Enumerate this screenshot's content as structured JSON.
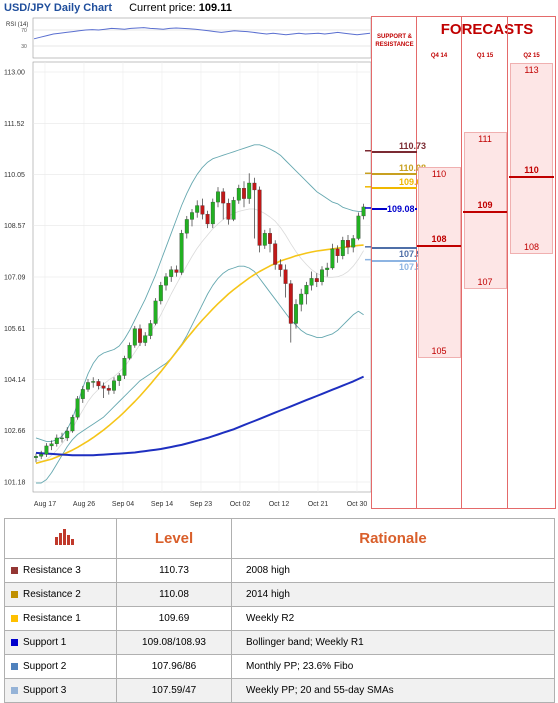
{
  "header": {
    "title": "USD/JPY Daily Chart",
    "price_label": "Current price:",
    "price_value": "109.11"
  },
  "rsi_label": "RSI (14)",
  "chart_data": {
    "type": "candlestick",
    "title": "USD/JPY Daily Chart",
    "current_price": 109.11,
    "y_ticks": [
      "113.00",
      "111.52",
      "110.05",
      "108.57",
      "107.09",
      "105.61",
      "104.14",
      "102.66",
      "101.18"
    ],
    "ylim": [
      101.18,
      113.0
    ],
    "x_ticks": [
      "Aug 17",
      "Aug 26",
      "Sep 04",
      "Sep 14",
      "Sep 23",
      "Oct 02",
      "Oct 12",
      "Oct 21",
      "Oct 30"
    ],
    "rsi_ticks": [
      "70",
      "30"
    ],
    "rsi": [
      48,
      52,
      56,
      60,
      62,
      64,
      66,
      68,
      70,
      71,
      70,
      72,
      74,
      73,
      72,
      74,
      75,
      76,
      74,
      73,
      72,
      74,
      75,
      74,
      73,
      72,
      70,
      68,
      66,
      64,
      66,
      68,
      67,
      66,
      64,
      62,
      60,
      62,
      60,
      58,
      60,
      62,
      60,
      61,
      62,
      60,
      62,
      64,
      62,
      60,
      58,
      60,
      62
    ],
    "candles": [
      [
        101.88,
        101.92,
        101.75,
        102.0
      ],
      [
        101.92,
        101.98,
        101.84,
        102.08
      ],
      [
        101.98,
        102.22,
        101.9,
        102.3
      ],
      [
        102.22,
        102.28,
        102.1,
        102.38
      ],
      [
        102.28,
        102.45,
        102.2,
        102.55
      ],
      [
        102.45,
        102.45,
        102.32,
        102.6
      ],
      [
        102.45,
        102.65,
        102.36,
        102.76
      ],
      [
        102.65,
        103.05,
        102.6,
        103.12
      ],
      [
        103.05,
        103.58,
        102.98,
        103.66
      ],
      [
        103.58,
        103.85,
        103.46,
        103.95
      ],
      [
        103.85,
        104.05,
        103.78,
        104.15
      ],
      [
        104.05,
        104.08,
        103.9,
        104.2
      ],
      [
        104.08,
        103.95,
        103.85,
        104.15
      ],
      [
        103.95,
        103.88,
        103.6,
        104.05
      ],
      [
        103.88,
        103.82,
        103.7,
        103.98
      ],
      [
        103.82,
        104.1,
        103.72,
        104.2
      ],
      [
        104.1,
        104.25,
        103.95,
        104.32
      ],
      [
        104.25,
        104.75,
        104.15,
        104.82
      ],
      [
        104.75,
        105.12,
        104.7,
        105.2
      ],
      [
        105.12,
        105.6,
        105.05,
        105.68
      ],
      [
        105.6,
        105.2,
        105.1,
        105.72
      ],
      [
        105.2,
        105.4,
        105.1,
        105.5
      ],
      [
        105.4,
        105.75,
        105.3,
        105.85
      ],
      [
        105.75,
        106.4,
        105.7,
        106.48
      ],
      [
        106.4,
        106.85,
        106.3,
        106.95
      ],
      [
        106.85,
        107.1,
        106.7,
        107.2
      ],
      [
        107.1,
        107.3,
        106.95,
        107.4
      ],
      [
        107.3,
        107.22,
        107.1,
        107.42
      ],
      [
        107.22,
        108.35,
        107.15,
        108.45
      ],
      [
        108.35,
        108.75,
        108.2,
        108.85
      ],
      [
        108.75,
        108.95,
        108.55,
        109.05
      ],
      [
        108.95,
        109.15,
        108.8,
        109.3
      ],
      [
        109.15,
        108.9,
        108.75,
        109.35
      ],
      [
        108.9,
        108.62,
        108.5,
        109.0
      ],
      [
        108.62,
        109.25,
        108.5,
        109.35
      ],
      [
        109.25,
        109.55,
        109.1,
        109.68
      ],
      [
        109.55,
        109.22,
        108.75,
        109.65
      ],
      [
        109.22,
        108.75,
        108.6,
        109.35
      ],
      [
        108.75,
        109.3,
        108.7,
        109.4
      ],
      [
        109.3,
        109.65,
        109.2,
        109.75
      ],
      [
        109.65,
        109.35,
        109.1,
        109.85
      ],
      [
        109.35,
        109.8,
        109.2,
        110.08
      ],
      [
        109.8,
        109.6,
        108.2,
        109.95
      ],
      [
        109.6,
        108.0,
        107.8,
        109.7
      ],
      [
        108.0,
        108.35,
        107.9,
        108.45
      ],
      [
        108.35,
        108.05,
        107.8,
        108.5
      ],
      [
        108.05,
        107.45,
        107.3,
        108.15
      ],
      [
        107.45,
        107.3,
        107.1,
        107.6
      ],
      [
        107.3,
        106.9,
        106.5,
        107.45
      ],
      [
        106.9,
        105.75,
        105.2,
        107.0
      ],
      [
        105.75,
        106.3,
        105.6,
        106.45
      ],
      [
        106.3,
        106.6,
        106.1,
        106.75
      ],
      [
        106.6,
        106.85,
        106.3,
        106.95
      ],
      [
        106.85,
        107.05,
        106.7,
        107.25
      ],
      [
        107.05,
        106.95,
        106.8,
        107.2
      ],
      [
        106.95,
        107.3,
        106.85,
        107.4
      ],
      [
        107.3,
        107.35,
        107.1,
        107.5
      ],
      [
        107.35,
        107.9,
        107.3,
        108.05
      ],
      [
        107.9,
        107.7,
        107.5,
        108.0
      ],
      [
        107.7,
        108.15,
        107.6,
        108.25
      ],
      [
        108.15,
        107.95,
        107.75,
        108.3
      ],
      [
        107.95,
        108.2,
        107.8,
        108.3
      ],
      [
        108.2,
        108.85,
        108.15,
        108.95
      ],
      [
        108.85,
        109.11,
        108.75,
        109.2
      ]
    ],
    "sma_fast": [
      101.82,
      101.78,
      101.82,
      101.95,
      102.1,
      102.28,
      102.48,
      102.72,
      103.0,
      103.25,
      103.5,
      103.7,
      103.85,
      104.0,
      104.12,
      104.22,
      104.35,
      104.5,
      104.7,
      104.92,
      105.15,
      105.32,
      105.5,
      105.72,
      106.0,
      106.3,
      106.6,
      106.88,
      107.15,
      107.42,
      107.68,
      107.92,
      108.12,
      108.3,
      108.48,
      108.62,
      108.75,
      108.85,
      108.92,
      108.98,
      109.02,
      109.05,
      109.05,
      109.0,
      108.92,
      108.82,
      108.7,
      108.52,
      108.3,
      108.05,
      107.82,
      107.62,
      107.45,
      107.3,
      107.2,
      107.12,
      107.08,
      107.08,
      107.1,
      107.15,
      107.25,
      107.4,
      107.6,
      107.85
    ],
    "sma_mid": [
      101.72,
      101.76,
      101.8,
      101.84,
      101.9,
      101.96,
      102.03,
      102.1,
      102.18,
      102.27,
      102.36,
      102.46,
      102.57,
      102.68,
      102.8,
      102.93,
      103.06,
      103.2,
      103.35,
      103.5,
      103.66,
      103.83,
      104.0,
      104.18,
      104.36,
      104.55,
      104.74,
      104.93,
      105.12,
      105.32,
      105.5,
      105.68,
      105.85,
      106.01,
      106.17,
      106.32,
      106.46,
      106.6,
      106.72,
      106.84,
      106.95,
      107.06,
      107.16,
      107.25,
      107.33,
      107.41,
      107.48,
      107.55,
      107.6,
      107.65,
      107.7,
      107.74,
      107.78,
      107.81,
      107.84,
      107.86,
      107.88,
      107.9,
      107.92,
      107.94,
      107.96,
      107.98,
      108.0,
      108.01
    ],
    "sma_slow": [
      102.02,
      102.01,
      102.0,
      101.99,
      101.98,
      101.97,
      101.96,
      101.95,
      101.95,
      101.95,
      101.95,
      101.95,
      101.96,
      101.97,
      101.98,
      101.99,
      102.0,
      102.01,
      102.02,
      102.03,
      102.05,
      102.07,
      102.09,
      102.11,
      102.13,
      102.16,
      102.19,
      102.22,
      102.25,
      102.29,
      102.33,
      102.37,
      102.41,
      102.45,
      102.5,
      102.55,
      102.6,
      102.65,
      102.7,
      102.76,
      102.82,
      102.88,
      102.94,
      103.0,
      103.06,
      103.12,
      103.18,
      103.24,
      103.3,
      103.36,
      103.42,
      103.48,
      103.54,
      103.6,
      103.66,
      103.72,
      103.78,
      103.84,
      103.9,
      103.96,
      104.02,
      104.08,
      104.15,
      104.22
    ],
    "bb_upper": [
      102.45,
      102.4,
      102.35,
      102.35,
      102.4,
      102.5,
      102.7,
      103.0,
      103.45,
      103.9,
      104.3,
      104.6,
      104.8,
      104.9,
      104.95,
      105.0,
      105.1,
      105.3,
      105.55,
      105.85,
      106.15,
      106.45,
      106.8,
      107.15,
      107.55,
      107.95,
      108.35,
      108.75,
      109.15,
      109.5,
      109.8,
      110.05,
      110.25,
      110.4,
      110.5,
      110.55,
      110.6,
      110.65,
      110.7,
      110.75,
      110.8,
      110.85,
      110.9,
      110.9,
      110.85,
      110.78,
      110.7,
      110.6,
      110.45,
      110.3,
      110.15,
      110.0,
      109.85,
      109.7,
      109.55,
      109.45,
      109.35,
      109.25,
      109.2,
      109.1,
      109.05,
      109.0,
      108.98,
      108.98
    ],
    "bb_lower": [
      101.15,
      101.15,
      101.25,
      101.45,
      101.7,
      101.95,
      102.2,
      102.4,
      102.55,
      102.65,
      102.75,
      102.85,
      102.95,
      103.05,
      103.2,
      103.35,
      103.5,
      103.65,
      103.8,
      103.95,
      104.1,
      104.2,
      104.3,
      104.4,
      104.5,
      104.6,
      104.75,
      104.95,
      105.15,
      105.4,
      105.7,
      106.0,
      106.3,
      106.6,
      106.85,
      107.05,
      107.2,
      107.3,
      107.35,
      107.4,
      107.4,
      107.35,
      107.25,
      107.05,
      106.85,
      106.65,
      106.45,
      106.25,
      106.05,
      105.85,
      105.7,
      105.55,
      105.45,
      105.4,
      105.35,
      105.35,
      105.4,
      105.45,
      105.55,
      105.7,
      105.85,
      106.0,
      106.1,
      106.0
    ],
    "support_resistance": [
      {
        "label": "110.73",
        "value": 110.73,
        "color": "#7b2a32"
      },
      {
        "label": "110.08",
        "value": 110.08,
        "color": "#c8a020"
      },
      {
        "label": "109.69",
        "value": 109.69,
        "color": "#f0b800"
      },
      {
        "label": "109.08",
        "value": 109.08,
        "color": "#0000cc"
      },
      {
        "label": "107.96",
        "value": 107.96,
        "color": "#4f6fa8"
      },
      {
        "label": "107.59",
        "value": 107.59,
        "color": "#8db4e2"
      }
    ]
  },
  "forecast": {
    "sr_title": "SUPPORT & RESISTANCE",
    "title": "FORECASTS",
    "quarters": [
      {
        "label": "Q4 14",
        "low": "105",
        "mid": "108",
        "high": "110",
        "low_v": 105,
        "mid_v": 108,
        "high_v": 110
      },
      {
        "label": "Q1 15",
        "low": "107",
        "mid": "109",
        "high": "111",
        "low_v": 107,
        "mid_v": 109,
        "high_v": 111
      },
      {
        "label": "Q2 15",
        "low": "108",
        "mid": "110",
        "high": "113",
        "low_v": 108,
        "mid_v": 110,
        "high_v": 113
      }
    ]
  },
  "table": {
    "headers": [
      "Level",
      "Rationale"
    ],
    "rows": [
      {
        "name": "Resistance 3",
        "level": "110.73",
        "rationale": "2008 high",
        "color": "#943634"
      },
      {
        "name": "Resistance 2",
        "level": "110.08",
        "rationale": "2014 high",
        "color": "#c09000"
      },
      {
        "name": "Resistance 1",
        "level": "109.69",
        "rationale": "Weekly R2",
        "color": "#ffc000"
      },
      {
        "name": "Support 1",
        "level": "109.08/108.93",
        "rationale": "Bollinger band; Weekly R1",
        "color": "#0000cc"
      },
      {
        "name": "Support 2",
        "level": "107.96/86",
        "rationale": "Monthly PP; 23.6% Fibo",
        "color": "#4f81bd"
      },
      {
        "name": "Support 3",
        "level": "107.59/47",
        "rationale": "Weekly PP; 20 and 55-day SMAs",
        "color": "#95b3d7"
      }
    ]
  }
}
